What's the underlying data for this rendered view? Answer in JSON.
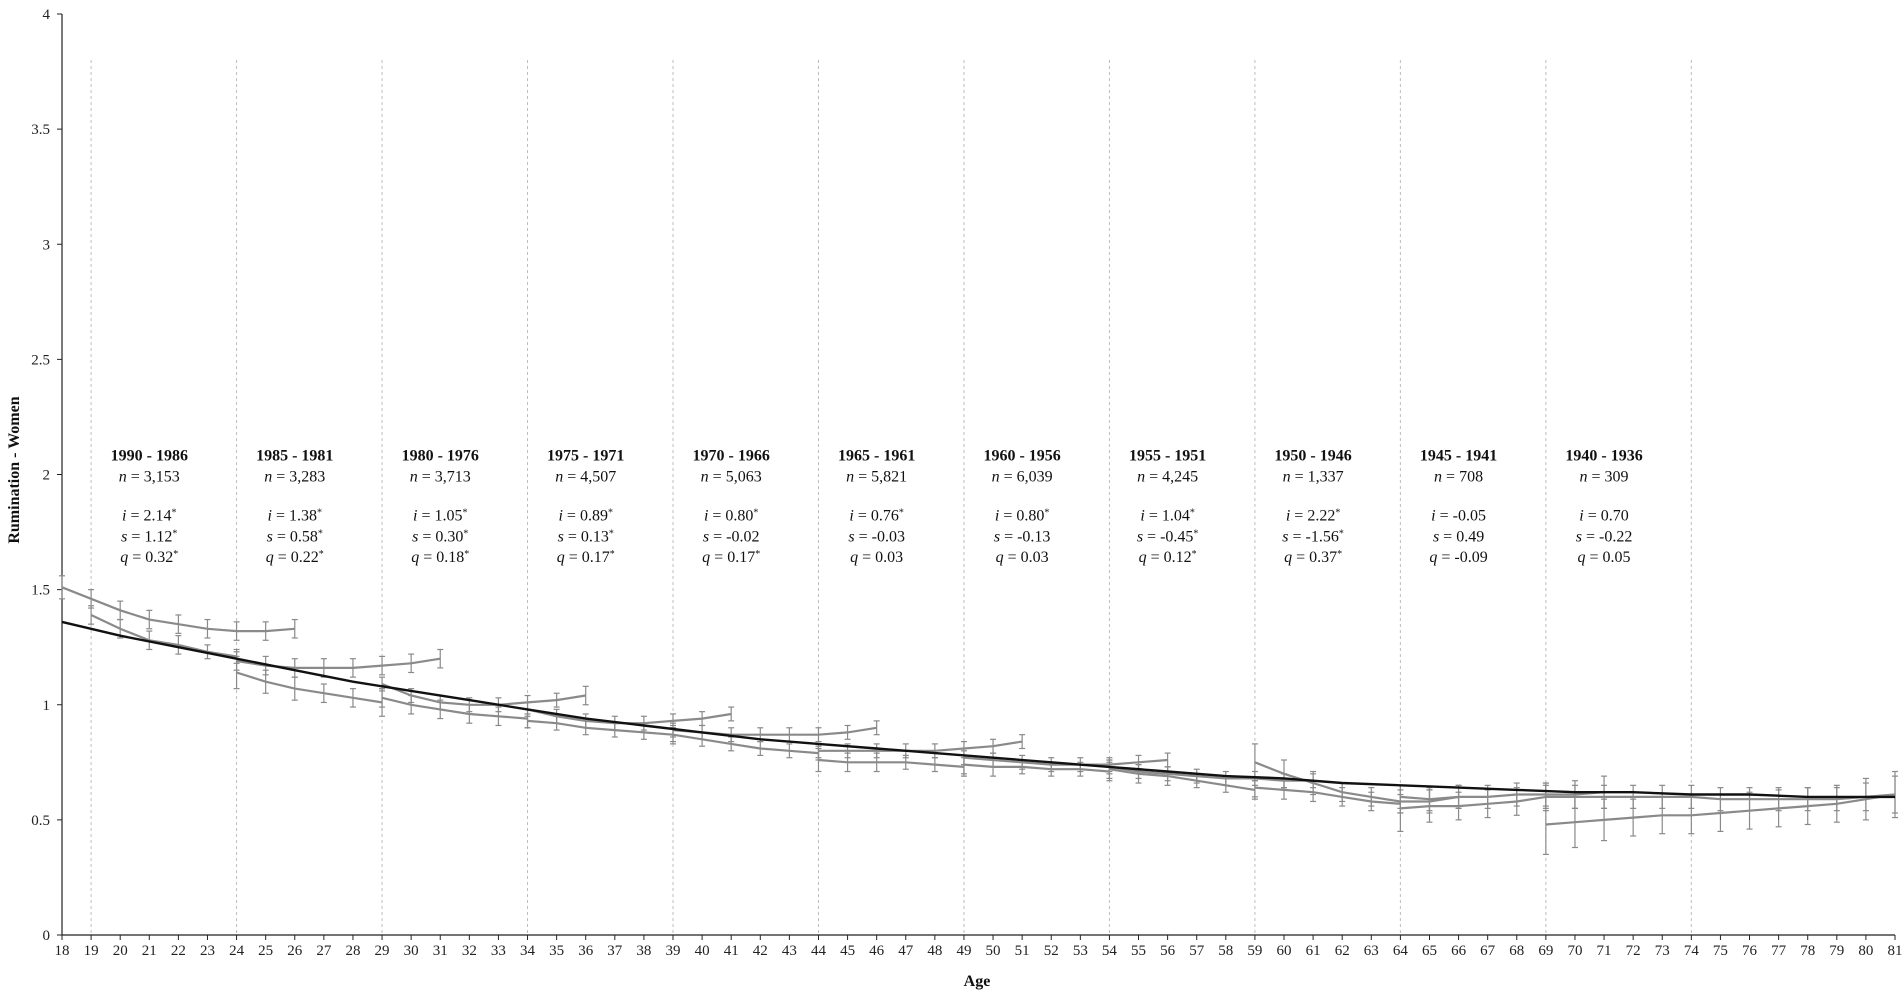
{
  "chart_data": {
    "type": "line",
    "xlabel": "Age",
    "ylabel": "Rumination - Women",
    "xlim": [
      18,
      81
    ],
    "ylim": [
      0,
      4
    ],
    "x_ticks": [
      18,
      19,
      20,
      21,
      22,
      23,
      24,
      25,
      26,
      27,
      28,
      29,
      30,
      31,
      32,
      33,
      34,
      35,
      36,
      37,
      38,
      39,
      40,
      41,
      42,
      43,
      44,
      45,
      46,
      47,
      48,
      49,
      50,
      51,
      52,
      53,
      54,
      55,
      56,
      57,
      58,
      59,
      60,
      61,
      62,
      63,
      64,
      65,
      66,
      67,
      68,
      69,
      70,
      71,
      72,
      73,
      74,
      75,
      76,
      77,
      78,
      79,
      80,
      81
    ],
    "y_ticks": [
      "0",
      "0.5",
      "1",
      "1.5",
      "2",
      "2.5",
      "3",
      "3.5",
      "4"
    ],
    "y_tick_values": [
      0,
      0.5,
      1,
      1.5,
      2,
      2.5,
      3,
      3.5,
      4
    ],
    "cohort_boundaries": [
      19,
      24,
      29,
      34,
      39,
      44,
      49,
      54,
      59,
      64,
      69,
      74
    ],
    "colors": {
      "overall": "#111111",
      "cohort": "#8a8a8a",
      "errorbar": "#8a8a8a",
      "boundary": "#bdbdbd",
      "axis": "#222222"
    },
    "overall_curve": {
      "x": [
        18,
        20,
        22,
        24,
        26,
        28,
        30,
        32,
        34,
        36,
        38,
        40,
        42,
        44,
        46,
        48,
        50,
        52,
        54,
        56,
        58,
        60,
        62,
        64,
        66,
        68,
        70,
        72,
        74,
        76,
        78,
        80,
        81
      ],
      "y": [
        1.36,
        1.3,
        1.25,
        1.2,
        1.15,
        1.1,
        1.06,
        1.02,
        0.98,
        0.94,
        0.91,
        0.88,
        0.85,
        0.83,
        0.81,
        0.79,
        0.77,
        0.75,
        0.73,
        0.71,
        0.69,
        0.68,
        0.66,
        0.65,
        0.64,
        0.63,
        0.62,
        0.62,
        0.61,
        0.61,
        0.6,
        0.6,
        0.6
      ]
    },
    "cohorts": [
      {
        "label": "1990 - 1986",
        "n": "n = 3,153",
        "stats": [
          {
            "sym": "i",
            "val": " = 2.14",
            "sig": true
          },
          {
            "sym": "s",
            "val": " = 1.12",
            "sig": true
          },
          {
            "sym": "q",
            "val": " = 0.32",
            "sig": true
          }
        ],
        "center_age": 21,
        "upper": {
          "x": [
            18,
            19,
            20,
            21,
            22,
            23,
            24,
            25,
            26
          ],
          "y": [
            1.51,
            1.46,
            1.41,
            1.37,
            1.35,
            1.33,
            1.32,
            1.32,
            1.33
          ],
          "err": [
            0.05,
            0.04,
            0.04,
            0.04,
            0.04,
            0.04,
            0.04,
            0.04,
            0.04
          ]
        },
        "lower": {
          "x": [
            19,
            20,
            21,
            22,
            23,
            24
          ],
          "y": [
            1.39,
            1.33,
            1.28,
            1.26,
            1.23,
            1.21
          ],
          "err": [
            0.04,
            0.04,
            0.04,
            0.04,
            0.03,
            0.03
          ]
        }
      },
      {
        "label": "1985 - 1981",
        "n": "n = 3,283",
        "stats": [
          {
            "sym": "i",
            "val": " = 1.38",
            "sig": true
          },
          {
            "sym": "s",
            "val": " = 0.58",
            "sig": true
          },
          {
            "sym": "q",
            "val": " = 0.22",
            "sig": true
          }
        ],
        "center_age": 26,
        "upper": {
          "x": [
            24,
            25,
            26,
            27,
            28,
            29,
            30,
            31
          ],
          "y": [
            1.19,
            1.17,
            1.16,
            1.16,
            1.16,
            1.17,
            1.18,
            1.2
          ],
          "err": [
            0.04,
            0.04,
            0.04,
            0.04,
            0.04,
            0.04,
            0.04,
            0.04
          ]
        },
        "lower": {
          "x": [
            24,
            25,
            26,
            27,
            28,
            29
          ],
          "y": [
            1.14,
            1.1,
            1.07,
            1.05,
            1.03,
            1.01
          ],
          "err": [
            0.07,
            0.05,
            0.05,
            0.04,
            0.04,
            0.06
          ]
        }
      },
      {
        "label": "1980 - 1976",
        "n": "n = 3,713",
        "stats": [
          {
            "sym": "i",
            "val": " = 1.05",
            "sig": true
          },
          {
            "sym": "s",
            "val": " = 0.30",
            "sig": true
          },
          {
            "sym": "q",
            "val": " = 0.18",
            "sig": true
          }
        ],
        "center_age": 31,
        "upper": {
          "x": [
            29,
            30,
            31,
            32,
            33,
            34,
            35,
            36
          ],
          "y": [
            1.09,
            1.04,
            1.01,
            1.0,
            1.0,
            1.01,
            1.02,
            1.04
          ],
          "err": [
            0.03,
            0.03,
            0.03,
            0.03,
            0.03,
            0.03,
            0.03,
            0.04
          ]
        },
        "lower": {
          "x": [
            29,
            30,
            31,
            32,
            33,
            34
          ],
          "y": [
            1.03,
            1.0,
            0.98,
            0.96,
            0.95,
            0.94
          ],
          "err": [
            0.04,
            0.04,
            0.04,
            0.04,
            0.04,
            0.04
          ]
        }
      },
      {
        "label": "1975 - 1971",
        "n": "n = 4,507",
        "stats": [
          {
            "sym": "i",
            "val": " = 0.89",
            "sig": true
          },
          {
            "sym": "s",
            "val": " = 0.13",
            "sig": true
          },
          {
            "sym": "q",
            "val": " = 0.17",
            "sig": true
          }
        ],
        "center_age": 36,
        "upper": {
          "x": [
            34,
            35,
            36,
            37,
            38,
            39,
            40,
            41
          ],
          "y": [
            0.98,
            0.95,
            0.93,
            0.92,
            0.92,
            0.93,
            0.94,
            0.96
          ],
          "err": [
            0.03,
            0.03,
            0.03,
            0.03,
            0.03,
            0.03,
            0.03,
            0.03
          ]
        },
        "lower": {
          "x": [
            34,
            35,
            36,
            37,
            38,
            39
          ],
          "y": [
            0.93,
            0.92,
            0.9,
            0.89,
            0.88,
            0.87
          ],
          "err": [
            0.03,
            0.03,
            0.03,
            0.03,
            0.03,
            0.03
          ]
        }
      },
      {
        "label": "1970 - 1966",
        "n": "n = 5,063",
        "stats": [
          {
            "sym": "i",
            "val": " = 0.80",
            "sig": true
          },
          {
            "sym": "s",
            "val": " = -0.02",
            "sig": false
          },
          {
            "sym": "q",
            "val": " = 0.17",
            "sig": true
          }
        ],
        "center_age": 41,
        "upper": {
          "x": [
            39,
            40,
            41,
            42,
            43,
            44,
            45,
            46
          ],
          "y": [
            0.89,
            0.88,
            0.87,
            0.87,
            0.87,
            0.87,
            0.88,
            0.9
          ],
          "err": [
            0.03,
            0.03,
            0.03,
            0.03,
            0.03,
            0.03,
            0.03,
            0.03
          ]
        },
        "lower": {
          "x": [
            39,
            40,
            41,
            42,
            43,
            44
          ],
          "y": [
            0.87,
            0.85,
            0.83,
            0.81,
            0.8,
            0.79
          ],
          "err": [
            0.04,
            0.03,
            0.03,
            0.03,
            0.03,
            0.03
          ]
        }
      },
      {
        "label": "1965 - 1961",
        "n": "n = 5,821",
        "stats": [
          {
            "sym": "i",
            "val": " = 0.76",
            "sig": true
          },
          {
            "sym": "s",
            "val": " = -0.03",
            "sig": false
          },
          {
            "sym": "q",
            "val": " = 0.03",
            "sig": false
          }
        ],
        "center_age": 46,
        "upper": {
          "x": [
            44,
            45,
            46,
            47,
            48,
            49,
            50,
            51
          ],
          "y": [
            0.8,
            0.8,
            0.8,
            0.8,
            0.8,
            0.81,
            0.82,
            0.84
          ],
          "err": [
            0.03,
            0.03,
            0.03,
            0.03,
            0.03,
            0.03,
            0.03,
            0.03
          ]
        },
        "lower": {
          "x": [
            44,
            45,
            46,
            47,
            48,
            49
          ],
          "y": [
            0.76,
            0.75,
            0.75,
            0.75,
            0.74,
            0.73
          ],
          "err": [
            0.05,
            0.04,
            0.04,
            0.03,
            0.03,
            0.04
          ]
        }
      },
      {
        "label": "1960 - 1956",
        "n": "n = 6,039",
        "stats": [
          {
            "sym": "i",
            "val": " = 0.80",
            "sig": true
          },
          {
            "sym": "s",
            "val": " = -0.13",
            "sig": false
          },
          {
            "sym": "q",
            "val": " = 0.03",
            "sig": false
          }
        ],
        "center_age": 51,
        "upper": {
          "x": [
            49,
            50,
            51,
            52,
            53,
            54,
            55,
            56
          ],
          "y": [
            0.77,
            0.76,
            0.75,
            0.74,
            0.74,
            0.74,
            0.75,
            0.76
          ],
          "err": [
            0.03,
            0.03,
            0.03,
            0.03,
            0.03,
            0.03,
            0.03,
            0.03
          ]
        },
        "lower": {
          "x": [
            49,
            50,
            51,
            52,
            53,
            54
          ],
          "y": [
            0.74,
            0.73,
            0.73,
            0.72,
            0.72,
            0.71
          ],
          "err": [
            0.04,
            0.04,
            0.03,
            0.03,
            0.03,
            0.04
          ]
        }
      },
      {
        "label": "1955 - 1951",
        "n": "n = 4,245",
        "stats": [
          {
            "sym": "i",
            "val": " = 1.04",
            "sig": true
          },
          {
            "sym": "s",
            "val": " = -0.45",
            "sig": true
          },
          {
            "sym": "q",
            "val": " = 0.12",
            "sig": true
          }
        ],
        "center_age": 56,
        "upper": {
          "x": [
            54,
            55,
            56,
            57,
            58,
            59,
            60,
            61
          ],
          "y": [
            0.73,
            0.71,
            0.7,
            0.69,
            0.68,
            0.68,
            0.67,
            0.67
          ],
          "err": [
            0.03,
            0.03,
            0.03,
            0.03,
            0.03,
            0.03,
            0.03,
            0.03
          ]
        },
        "lower": {
          "x": [
            54,
            55,
            56,
            57,
            58,
            59
          ],
          "y": [
            0.72,
            0.7,
            0.69,
            0.67,
            0.65,
            0.63
          ],
          "err": [
            0.04,
            0.04,
            0.04,
            0.03,
            0.03,
            0.04
          ]
        }
      },
      {
        "label": "1950 - 1946",
        "n": "n = 1,337",
        "stats": [
          {
            "sym": "i",
            "val": " = 2.22",
            "sig": true
          },
          {
            "sym": "s",
            "val": " = -1.56",
            "sig": true
          },
          {
            "sym": "q",
            "val": " = 0.37",
            "sig": true
          }
        ],
        "center_age": 61,
        "upper": {
          "x": [
            59,
            60,
            61,
            62,
            63,
            64,
            65,
            66
          ],
          "y": [
            0.75,
            0.7,
            0.66,
            0.62,
            0.6,
            0.58,
            0.58,
            0.6
          ],
          "err": [
            0.08,
            0.06,
            0.05,
            0.04,
            0.04,
            0.05,
            0.05,
            0.05
          ]
        },
        "lower": {
          "x": [
            59,
            60,
            61,
            62,
            63,
            64
          ],
          "y": [
            0.64,
            0.63,
            0.62,
            0.6,
            0.58,
            0.57
          ],
          "err": [
            0.04,
            0.04,
            0.04,
            0.04,
            0.04,
            0.04
          ]
        }
      },
      {
        "label": "1945 - 1941",
        "n": "n = 708",
        "stats": [
          {
            "sym": "i",
            "val": " = -0.05",
            "sig": false
          },
          {
            "sym": "s",
            "val": " = 0.49",
            "sig": false
          },
          {
            "sym": "q",
            "val": " = -0.09",
            "sig": false
          }
        ],
        "center_age": 66,
        "upper": {
          "x": [
            64,
            65,
            66,
            67,
            68,
            69,
            70,
            71
          ],
          "y": [
            0.6,
            0.59,
            0.6,
            0.6,
            0.61,
            0.61,
            0.61,
            0.62
          ],
          "err": [
            0.05,
            0.05,
            0.05,
            0.05,
            0.05,
            0.05,
            0.06,
            0.07
          ]
        },
        "lower": {
          "x": [
            64,
            65,
            66,
            67,
            68,
            69
          ],
          "y": [
            0.55,
            0.56,
            0.56,
            0.57,
            0.58,
            0.6
          ],
          "err": [
            0.1,
            0.07,
            0.06,
            0.06,
            0.06,
            0.06
          ]
        }
      },
      {
        "label": "1940 - 1936",
        "n": "n = 309",
        "stats": [
          {
            "sym": "i",
            "val": " = 0.70",
            "sig": false
          },
          {
            "sym": "s",
            "val": " = -0.22",
            "sig": false
          },
          {
            "sym": "q",
            "val": " = 0.05",
            "sig": false
          }
        ],
        "center_age": 71,
        "upper": {
          "x": [
            69,
            70,
            71,
            72,
            73,
            74,
            75,
            76,
            77,
            78,
            79,
            80,
            81
          ],
          "y": [
            0.6,
            0.6,
            0.6,
            0.6,
            0.6,
            0.6,
            0.59,
            0.59,
            0.59,
            0.59,
            0.59,
            0.6,
            0.61
          ],
          "err": [
            0.05,
            0.05,
            0.05,
            0.05,
            0.05,
            0.05,
            0.05,
            0.05,
            0.05,
            0.05,
            0.05,
            0.06,
            0.08
          ]
        },
        "lower": {
          "x": [
            69,
            70,
            71,
            72,
            73,
            74,
            75,
            76,
            77,
            78,
            79,
            80,
            81
          ],
          "y": [
            0.48,
            0.49,
            0.5,
            0.51,
            0.52,
            0.52,
            0.53,
            0.54,
            0.55,
            0.56,
            0.57,
            0.59,
            0.61
          ],
          "err": [
            0.13,
            0.11,
            0.09,
            0.08,
            0.08,
            0.08,
            0.08,
            0.08,
            0.08,
            0.08,
            0.08,
            0.09,
            0.1
          ]
        }
      }
    ]
  }
}
